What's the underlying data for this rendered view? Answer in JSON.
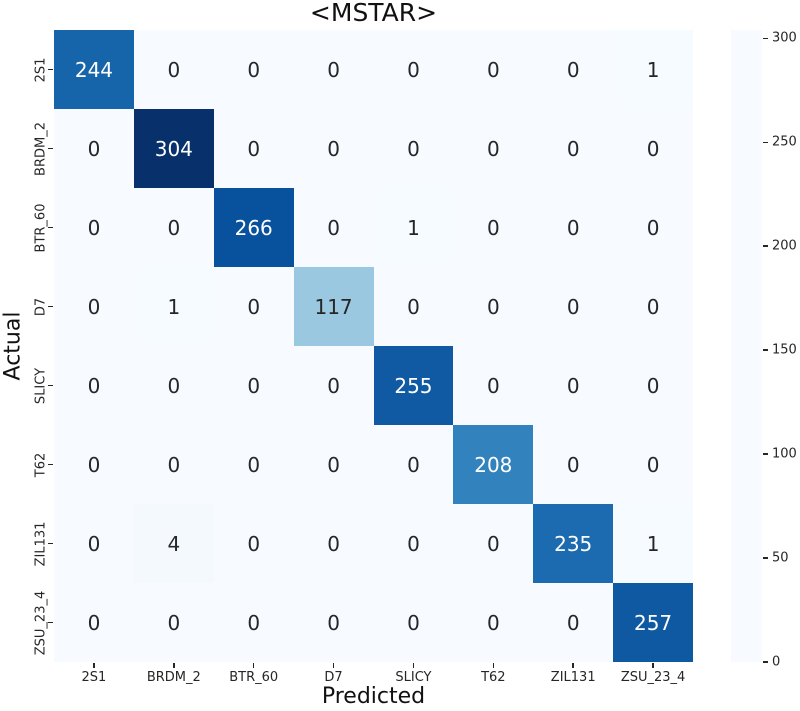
{
  "figure": {
    "title": "<MSTAR>",
    "xlabel": "Predicted",
    "ylabel": "Actual"
  },
  "chart_data": {
    "type": "heatmap",
    "title": "<MSTAR>",
    "xlabel": "Predicted",
    "ylabel": "Actual",
    "x_categories": [
      "2S1",
      "BRDM_2",
      "BTR_60",
      "D7",
      "SLICY",
      "T62",
      "ZIL131",
      "ZSU_23_4"
    ],
    "y_categories": [
      "2S1",
      "BRDM_2",
      "BTR_60",
      "D7",
      "SLICY",
      "T62",
      "ZIL131",
      "ZSU_23_4"
    ],
    "matrix": [
      [
        244,
        0,
        0,
        0,
        0,
        0,
        0,
        1
      ],
      [
        0,
        304,
        0,
        0,
        0,
        0,
        0,
        0
      ],
      [
        0,
        0,
        266,
        0,
        1,
        0,
        0,
        0
      ],
      [
        0,
        1,
        0,
        117,
        0,
        0,
        0,
        0
      ],
      [
        0,
        0,
        0,
        0,
        255,
        0,
        0,
        0
      ],
      [
        0,
        0,
        0,
        0,
        0,
        208,
        0,
        0
      ],
      [
        0,
        4,
        0,
        0,
        0,
        0,
        235,
        1
      ],
      [
        0,
        0,
        0,
        0,
        0,
        0,
        0,
        257
      ]
    ],
    "vmin": 0,
    "vmax": 304,
    "colormap": "Blues",
    "colorbar_ticks": [
      0,
      50,
      100,
      150,
      200,
      250,
      300
    ],
    "colorbar_position": "right",
    "grid": false,
    "legend_position": "none"
  },
  "colors": {
    "cmap_stops": [
      "#f7fbff",
      "#deebf7",
      "#c6dbef",
      "#9ecae1",
      "#6baed6",
      "#4292c6",
      "#2171b5",
      "#08519c",
      "#08306b"
    ],
    "annot_dark": "#262626",
    "annot_light": "#ffffff",
    "tick_text": "#262626",
    "background": "#ffffff"
  }
}
